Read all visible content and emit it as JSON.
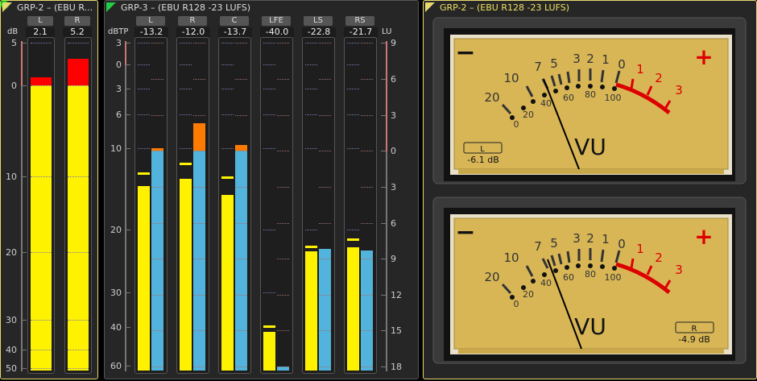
{
  "panel1": {
    "title": "GRP-2 – (EBU R...",
    "unit": "dB",
    "accent": "#e8d870",
    "scale": [
      "5",
      "0",
      "10",
      "20",
      "30",
      "40",
      "50"
    ],
    "channels": [
      {
        "name": "L",
        "readout": "2.1",
        "level_db": 0.9
      },
      {
        "name": "R",
        "readout": "5.2",
        "level_db": 3.1
      }
    ],
    "status_led": "green"
  },
  "panel2": {
    "title": "GRP-3 – (EBU R128 -23 LUFS)",
    "accent": "#22cc44",
    "left_unit": "dBTP",
    "right_unit": "LU",
    "left_scale": [
      "3",
      "0",
      "3",
      "6",
      "10",
      "20",
      "30",
      "40",
      "60"
    ],
    "right_scale": [
      "9",
      "6",
      "3",
      "0",
      "3",
      "6",
      "9",
      "12",
      "15",
      "18"
    ],
    "channels": [
      {
        "name": "L",
        "readout": "-13.2",
        "tp_level_db": -14.7,
        "lu_level": 0.2
      },
      {
        "name": "R",
        "readout": "-12.0",
        "tp_level_db": -13.8,
        "lu_level": 2.3
      },
      {
        "name": "C",
        "readout": "-13.7",
        "tp_level_db": -15.7,
        "lu_level": 0.5
      },
      {
        "name": "LFE",
        "readout": "-40.0",
        "tp_level_db": -42.7,
        "lu_level": -18.3
      },
      {
        "name": "LS",
        "readout": "-22.8",
        "tp_level_db": -23.5,
        "lu_level": -8.2
      },
      {
        "name": "RS",
        "readout": "-21.7",
        "tp_level_db": -22.8,
        "lu_level": -8.3
      }
    ]
  },
  "panel3": {
    "title": "GRP-2 – (EBU R128 -23 LUFS)",
    "accent": "#e8d870",
    "vu_scale": [
      "20",
      "10",
      "7",
      "5",
      "3",
      "2",
      "1",
      "0",
      "1",
      "2",
      "3"
    ],
    "percent_scale": [
      "0",
      "20",
      "40",
      "60",
      "80",
      "100"
    ],
    "minus": "−",
    "plus": "+",
    "vu_label": "VU",
    "meters": [
      {
        "channel": "L",
        "readout": "-6.1 dB",
        "level_db": -6.1
      },
      {
        "channel": "R",
        "readout": "-4.9 dB",
        "level_db": -4.9
      }
    ]
  },
  "colors": {
    "yellow": "#fff200",
    "red": "#ff0000",
    "blue": "#52b4dc",
    "orange": "#ff7a00",
    "dial": "#d8b656"
  }
}
